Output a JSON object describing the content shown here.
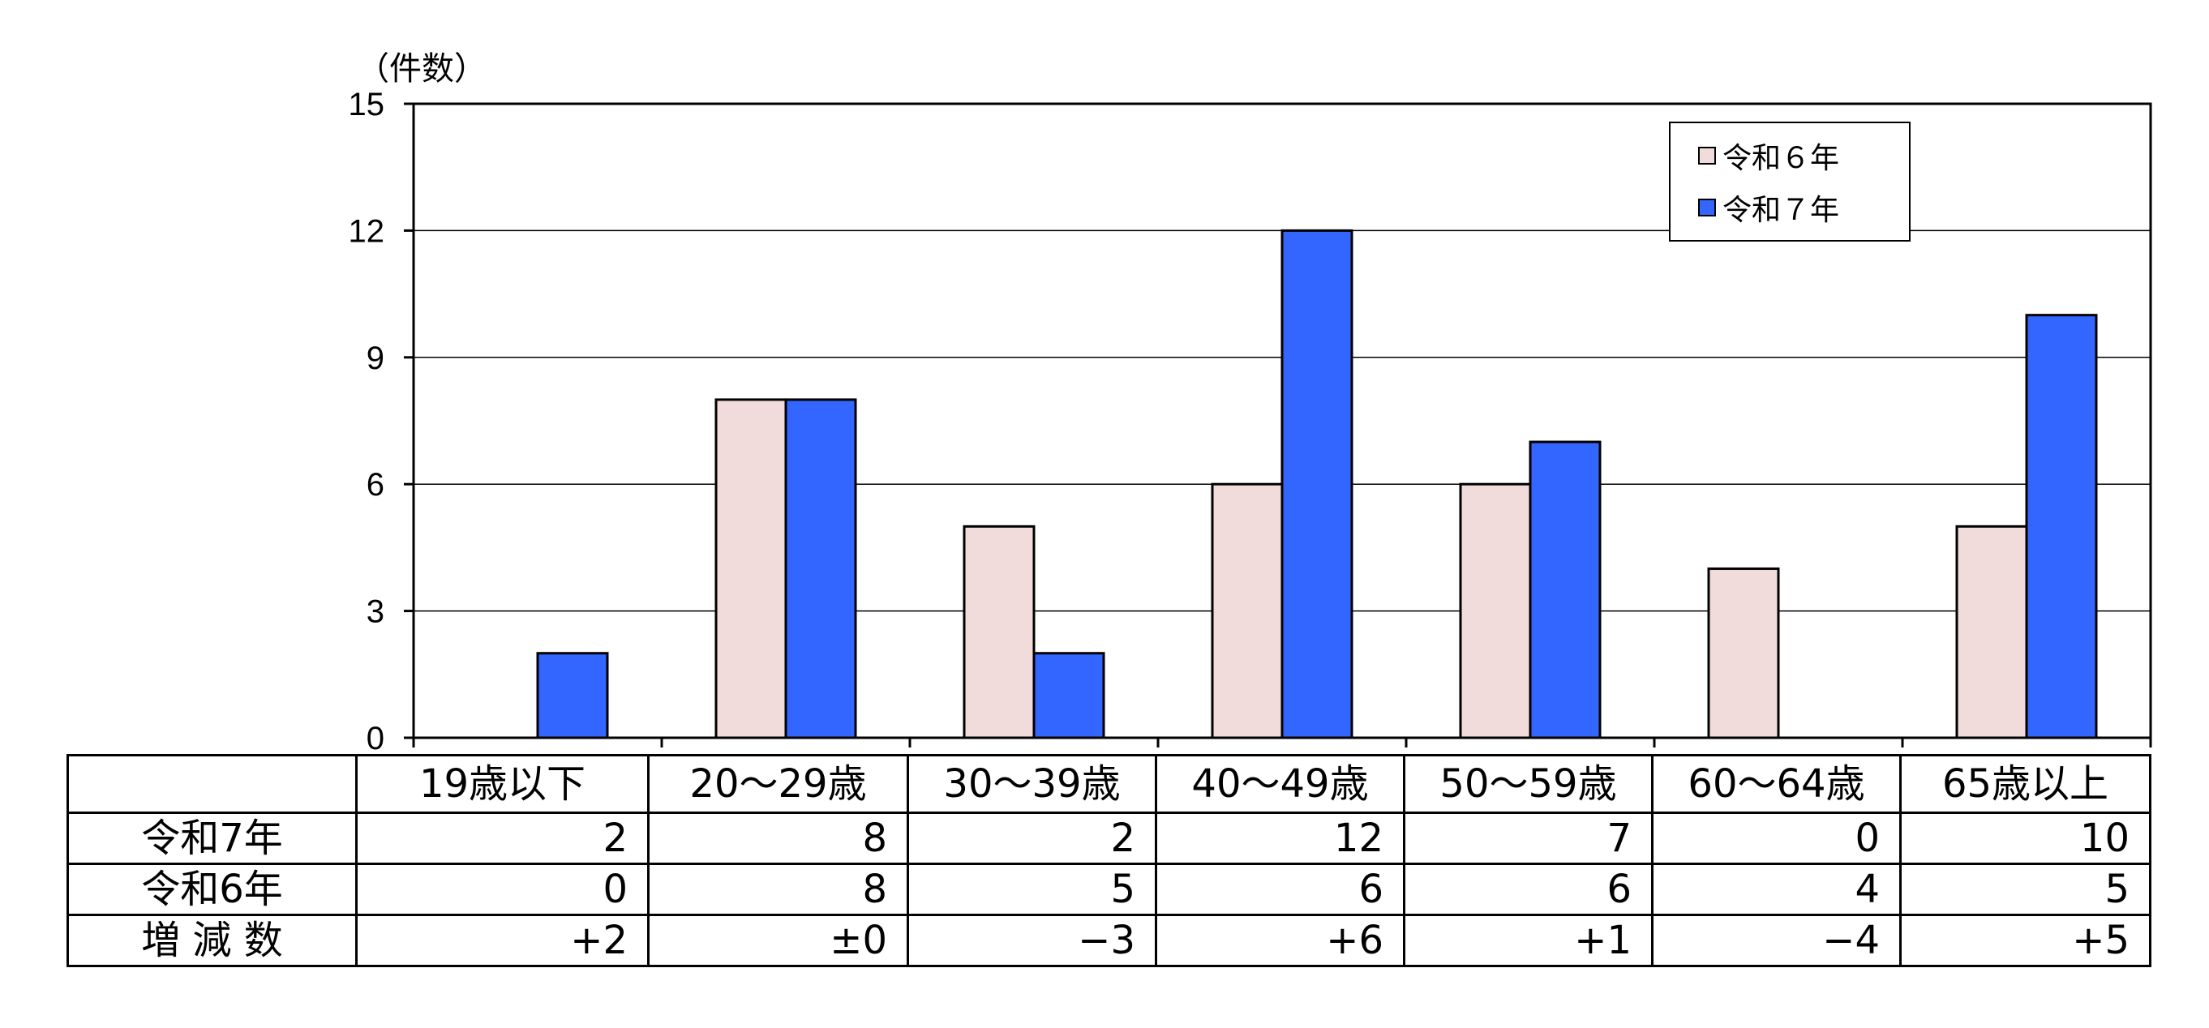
{
  "y_unit_label": "（件数）",
  "colors": {
    "r6": "#f2dcdb",
    "r7": "#3366ff",
    "grid": "#000000"
  },
  "legend": {
    "r6": "令和６年",
    "r7": "令和７年"
  },
  "table": {
    "rows": [
      {
        "label": "令和7年",
        "values": [
          "2",
          "8",
          "2",
          "12",
          "7",
          "0",
          "10"
        ]
      },
      {
        "label": "令和6年",
        "values": [
          "0",
          "8",
          "5",
          "6",
          "6",
          "4",
          "5"
        ]
      },
      {
        "label": "増 減 数",
        "values": [
          "+2",
          "±0",
          "−3",
          "+6",
          "+1",
          "−4",
          "+5"
        ]
      }
    ]
  },
  "chart_data": {
    "type": "bar",
    "categories": [
      "19歳以下",
      "20～29歳",
      "30～39歳",
      "40～49歳",
      "50～59歳",
      "60～64歳",
      "65歳以上"
    ],
    "series": [
      {
        "name": "令和６年",
        "values": [
          0,
          8,
          5,
          6,
          6,
          4,
          5
        ]
      },
      {
        "name": "令和７年",
        "values": [
          2,
          8,
          2,
          12,
          7,
          0,
          10
        ]
      }
    ],
    "ylabel": "（件数）",
    "ylim": [
      0,
      15
    ],
    "yticks": [
      0,
      3,
      6,
      9,
      12,
      15
    ],
    "grid": true,
    "legend_position": "top-right"
  }
}
